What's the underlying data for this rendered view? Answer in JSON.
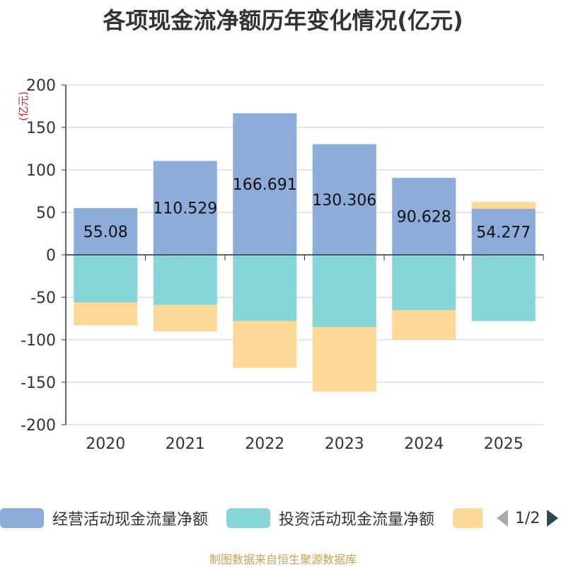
{
  "chart_data": {
    "type": "bar",
    "stacked": true,
    "title": "各项现金流净额历年变化情况(亿元)",
    "ylabel": "(亿元)",
    "xlabel": "",
    "ylim": [
      -200,
      200
    ],
    "yticks": [
      200,
      150,
      100,
      50,
      0,
      -50,
      -100,
      -150,
      -200
    ],
    "categories": [
      "2020",
      "2021",
      "2022",
      "2023",
      "2024",
      "2025"
    ],
    "series": [
      {
        "name": "经营活动现金流量净额",
        "color": "#8eacd9",
        "values": [
          55.08,
          110.529,
          166.691,
          130.306,
          90.628,
          54.277
        ],
        "labels": [
          "55.08",
          "110.529",
          "166.691",
          "130.306",
          "90.628",
          "54.277"
        ]
      },
      {
        "name": "投资活动现金流量净额",
        "color": "#86d5d7",
        "values": [
          -56,
          -59,
          -78,
          -85,
          -65,
          -78
        ]
      },
      {
        "name": "",
        "color": "#fdd896",
        "values": [
          -27,
          -31,
          -55,
          -76,
          -35,
          8
        ]
      }
    ],
    "legend_position": "bottom"
  },
  "legend": {
    "items": [
      {
        "label": "经营活动现金流量净额",
        "color": "#8eacd9"
      },
      {
        "label": "投资活动现金流量净额",
        "color": "#86d5d7"
      },
      {
        "label": "",
        "color": "#fdd896"
      }
    ],
    "page": "1/2"
  },
  "footer": "制图数据来自恒生聚源数据库"
}
